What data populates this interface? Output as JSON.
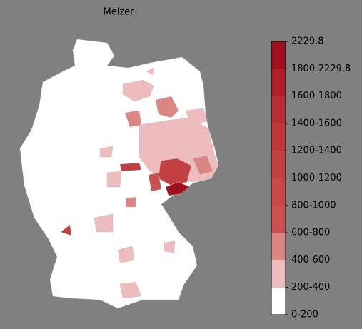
{
  "map": {
    "title": "Melzer",
    "colorbar": {
      "labels": [
        "0-200",
        "200-400",
        "400-600",
        "600-800",
        "800-1000",
        "1000-1200",
        "1200-1400",
        "1400-1600",
        "1600-1800",
        "1800-2229.8",
        "2229.8"
      ],
      "colors": [
        "#ffffff",
        "#eebcbc",
        "#dc8585",
        "#cd4f4f",
        "#c94848",
        "#c43f41",
        "#bf373a",
        "#b92d34",
        "#b0202b",
        "#a01020"
      ]
    }
  }
}
